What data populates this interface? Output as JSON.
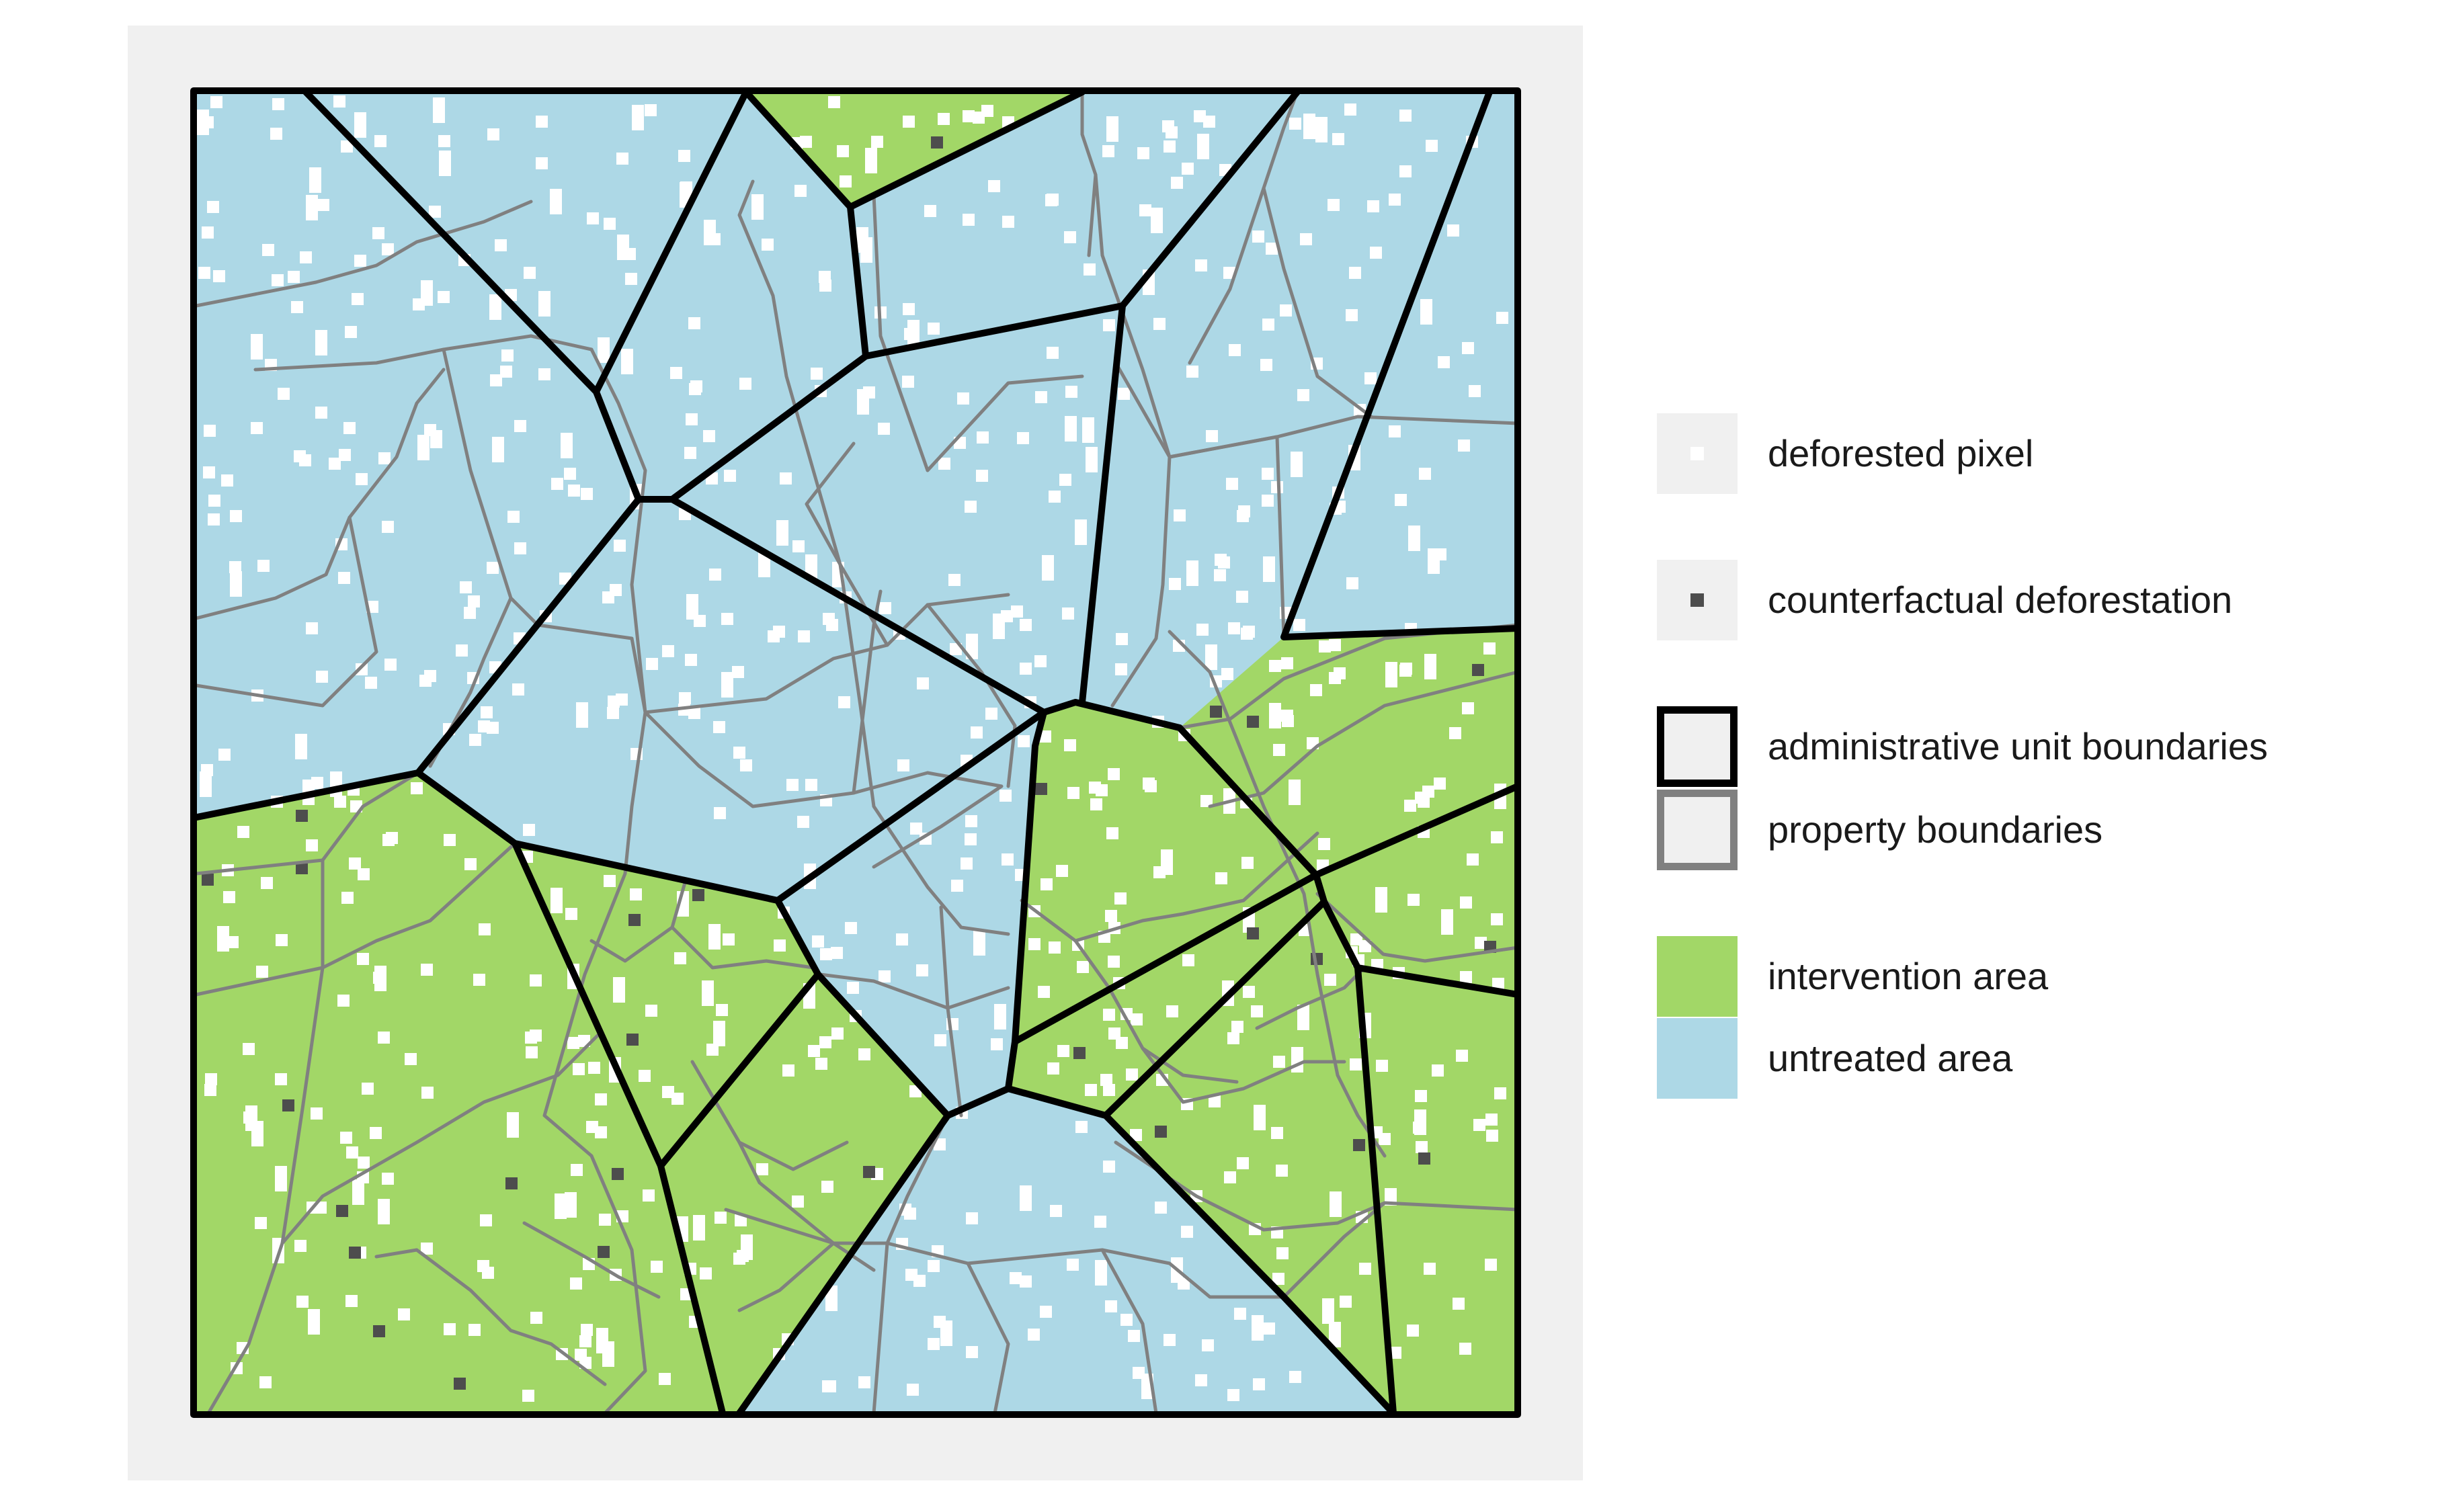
{
  "legend": {
    "items": [
      {
        "label": "deforested pixel",
        "key": "pixel",
        "color": "#ffffff",
        "background": "#f0f0f0"
      },
      {
        "label": "counterfactual deforestation",
        "key": "pixel",
        "color": "#4d4d4d",
        "background": "#f0f0f0"
      },
      {
        "label": "administrative unit boundaries",
        "key": "outline",
        "color": "#000000",
        "background": "#f0f0f0"
      },
      {
        "label": "property boundaries",
        "key": "outline",
        "color": "#808080",
        "background": "#f0f0f0"
      },
      {
        "label": "intervention area",
        "key": "fill",
        "color": "#a2d767",
        "background": "#a2d767"
      },
      {
        "label": "untreated area",
        "key": "fill",
        "color": "#add8e6",
        "background": "#add8e6"
      }
    ]
  },
  "colors": {
    "panel_background": "#f0f0f0",
    "intervention": "#a2d767",
    "untreated": "#add8e6",
    "admin_boundary": "#000000",
    "property_boundary": "#808080",
    "deforested_pixel": "#ffffff",
    "counterfactual_pixel": "#4d4d4d"
  }
}
